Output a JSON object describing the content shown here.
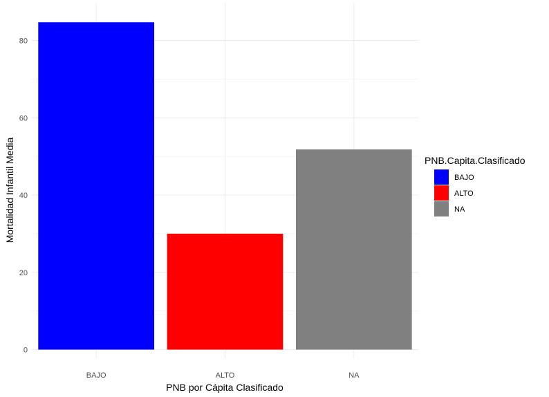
{
  "chart_data": {
    "type": "bar",
    "categories": [
      "BAJO",
      "ALTO",
      "NA"
    ],
    "values": [
      84.7,
      30.0,
      51.8
    ],
    "colors": [
      "#0000FF",
      "#FF0000",
      "#808080"
    ],
    "xlabel": "PNB por Cápita Clasificado",
    "ylabel": "Mortalidad Infantil Media",
    "ylim": [
      0,
      88
    ],
    "yticks": [
      0,
      20,
      40,
      60,
      80
    ],
    "ytick_labels": [
      "0",
      "20",
      "40",
      "60",
      "80"
    ],
    "grid": true,
    "legend": {
      "title": "PNB.Capita.Clasificado",
      "placement": "right",
      "entries": [
        "BAJO",
        "ALTO",
        "NA"
      ]
    }
  }
}
